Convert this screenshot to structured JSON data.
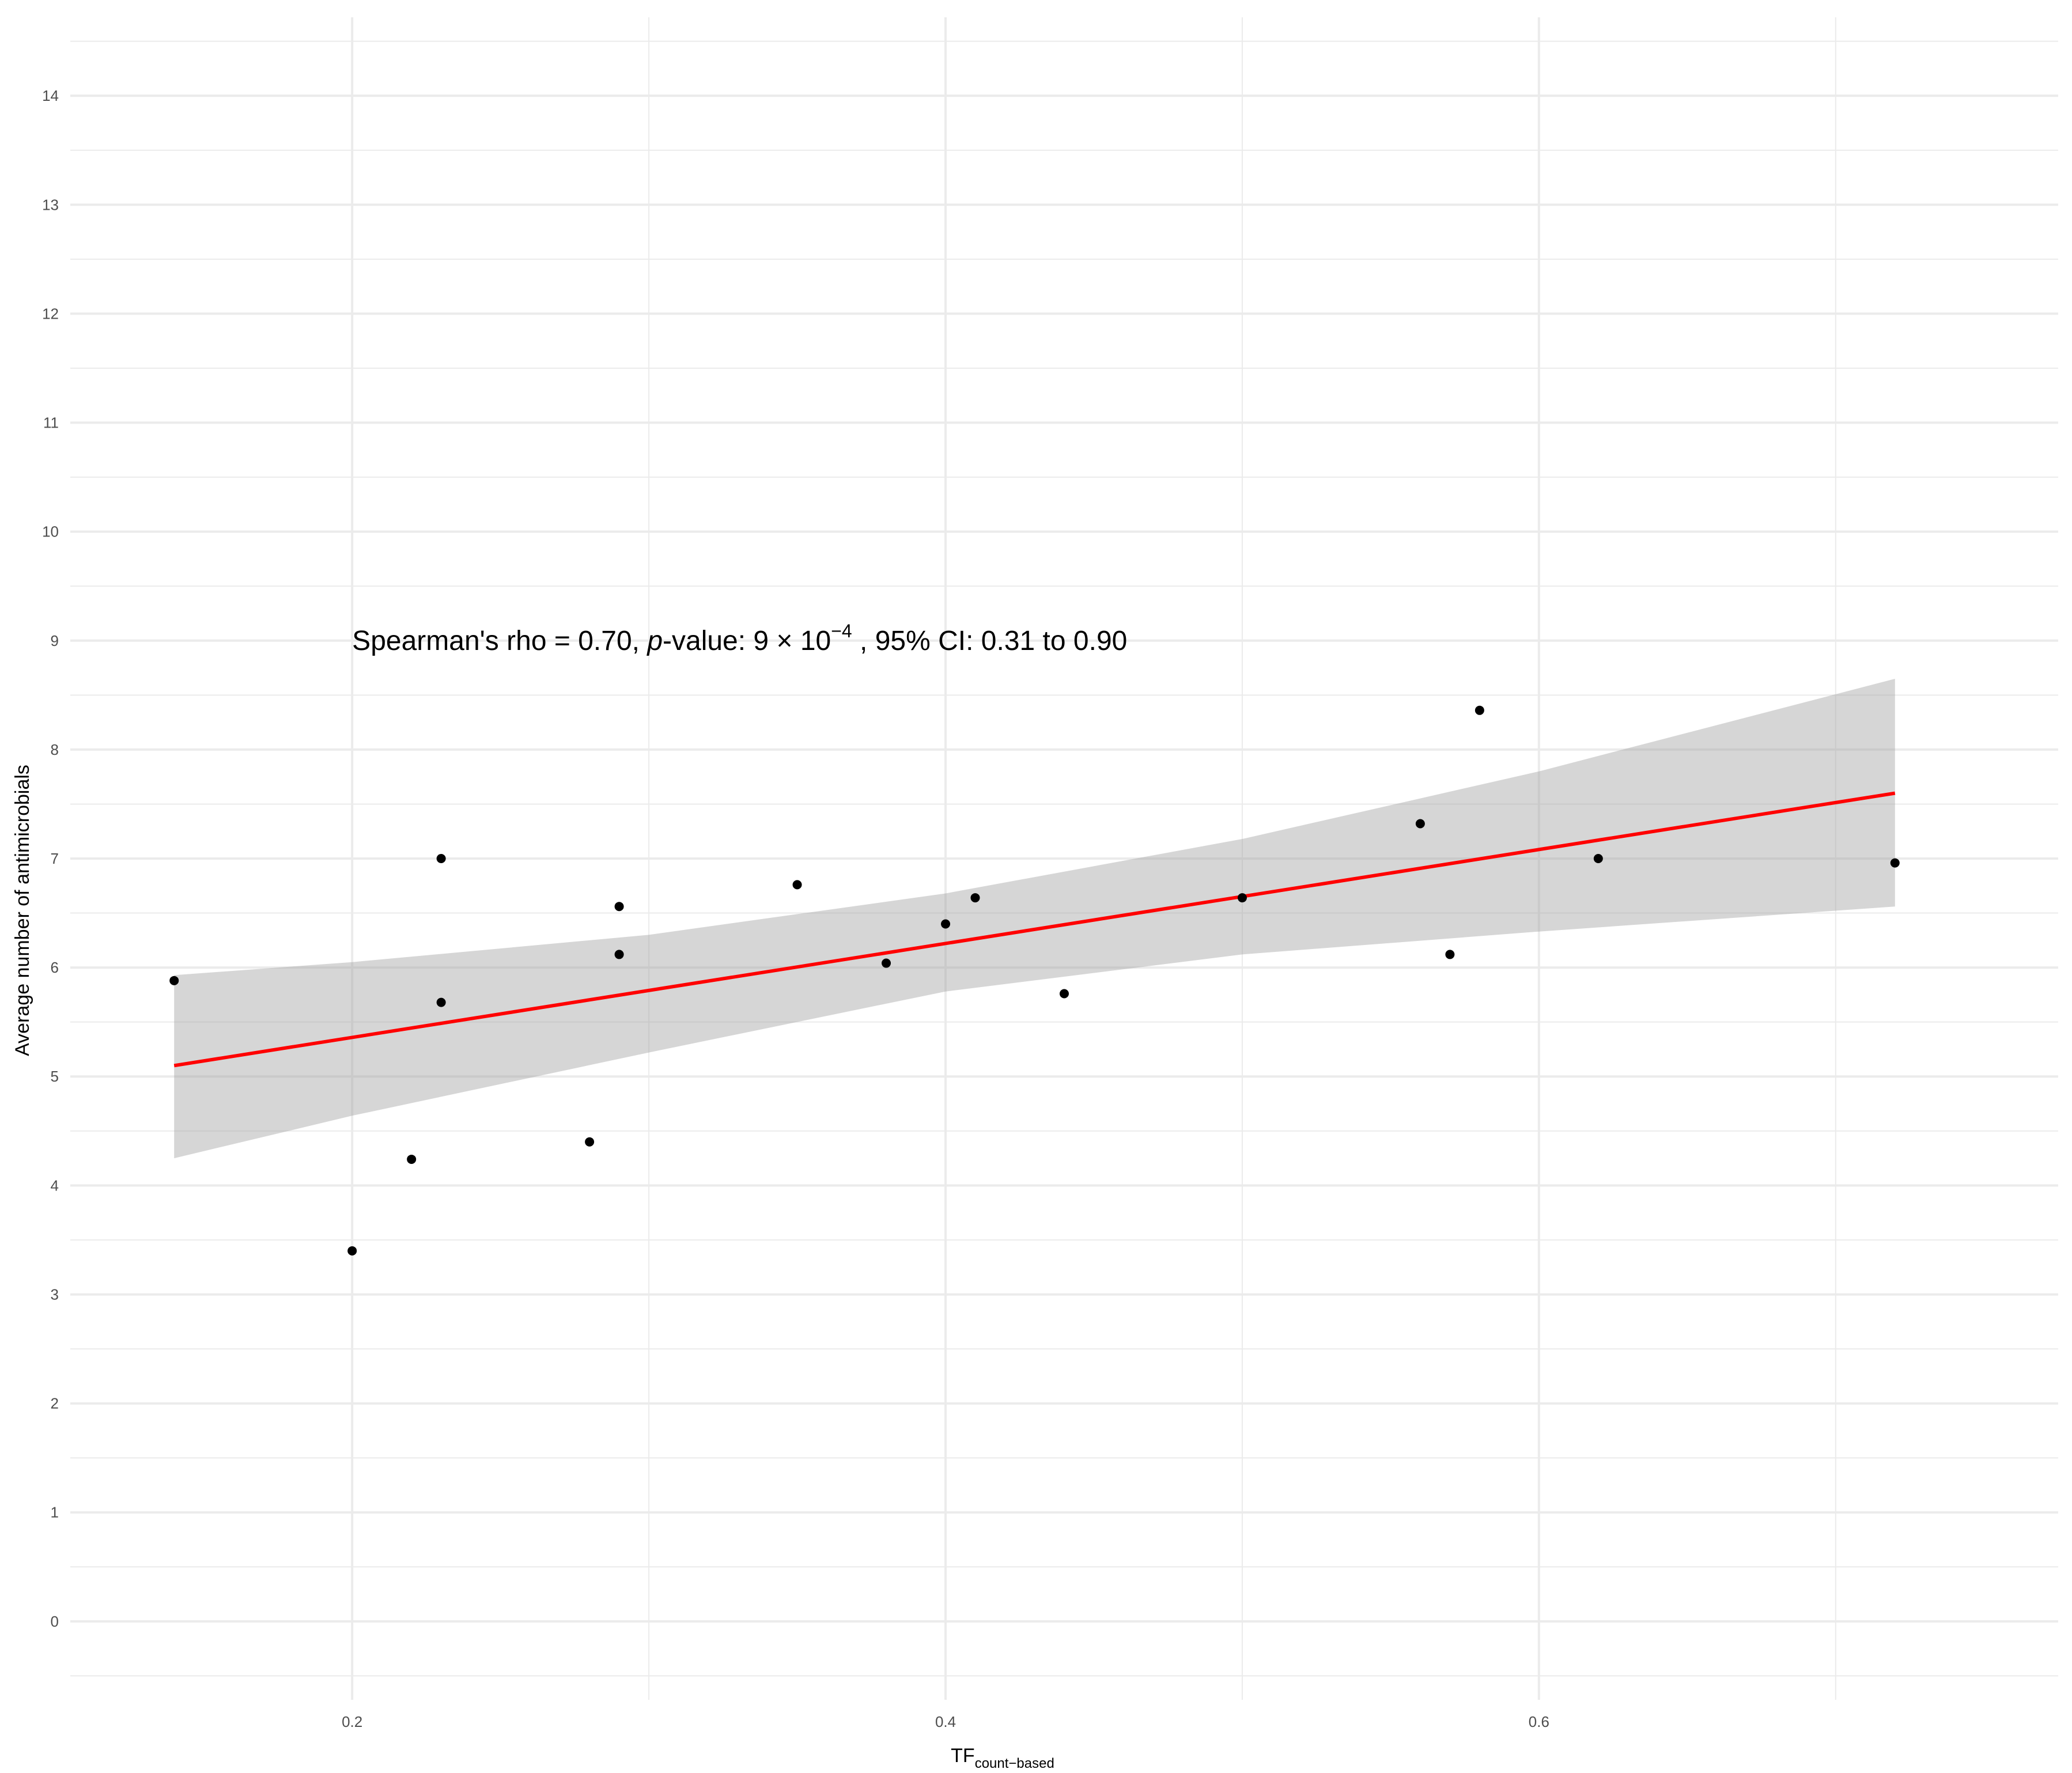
{
  "chart_data": {
    "type": "scatter",
    "title": "",
    "xlabel": "TF",
    "xlabel_subscript": "count−based",
    "ylabel": "Average number of antimicrobials",
    "xlim": [
      0.105,
      0.775
    ],
    "ylim": [
      -0.72,
      14.72
    ],
    "x_ticks": [
      0.2,
      0.4,
      0.6
    ],
    "x_tick_labels": [
      "0.2",
      "0.4",
      "0.6"
    ],
    "x_minor_gridlines": [
      0.3,
      0.5,
      0.7
    ],
    "y_ticks": [
      0,
      1,
      2,
      3,
      4,
      5,
      6,
      7,
      8,
      9,
      10,
      11,
      12,
      13,
      14
    ],
    "y_tick_labels": [
      "0",
      "1",
      "2",
      "3",
      "4",
      "5",
      "6",
      "7",
      "8",
      "9",
      "10",
      "11",
      "12",
      "13",
      "14"
    ],
    "grid": true,
    "legend": "none",
    "points": [
      {
        "x": 0.14,
        "y": 5.88
      },
      {
        "x": 0.2,
        "y": 3.4
      },
      {
        "x": 0.22,
        "y": 4.24
      },
      {
        "x": 0.23,
        "y": 7.0
      },
      {
        "x": 0.23,
        "y": 5.68
      },
      {
        "x": 0.28,
        "y": 4.4
      },
      {
        "x": 0.29,
        "y": 6.56
      },
      {
        "x": 0.29,
        "y": 6.12
      },
      {
        "x": 0.35,
        "y": 6.76
      },
      {
        "x": 0.38,
        "y": 6.04
      },
      {
        "x": 0.4,
        "y": 6.4
      },
      {
        "x": 0.41,
        "y": 6.64
      },
      {
        "x": 0.44,
        "y": 5.76
      },
      {
        "x": 0.5,
        "y": 6.64
      },
      {
        "x": 0.56,
        "y": 7.32
      },
      {
        "x": 0.57,
        "y": 6.12
      },
      {
        "x": 0.58,
        "y": 8.36
      },
      {
        "x": 0.62,
        "y": 7.0
      },
      {
        "x": 0.72,
        "y": 6.96
      }
    ],
    "fit_line": {
      "x": [
        0.14,
        0.72
      ],
      "y": [
        5.1,
        7.6
      ]
    },
    "confidence_band": {
      "x": [
        0.14,
        0.2,
        0.3,
        0.4,
        0.5,
        0.6,
        0.72
      ],
      "lower": [
        4.25,
        4.64,
        5.22,
        5.78,
        6.12,
        6.33,
        6.56
      ],
      "upper": [
        5.93,
        6.05,
        6.3,
        6.68,
        7.18,
        7.8,
        8.65
      ]
    },
    "colors": {
      "points": "#000000",
      "fit_line": "#ff0000",
      "band": "#999999",
      "grid": "#ebebeb"
    },
    "annotation": {
      "prefix": "Spearman's rho = 0.70, ",
      "p_italic": "p",
      "mid": "-value: 9 × 10",
      "exponent": "−4",
      "suffix": " , 95% CI: 0.31 to 0.90",
      "x": 0.2,
      "y": 9.0
    }
  }
}
